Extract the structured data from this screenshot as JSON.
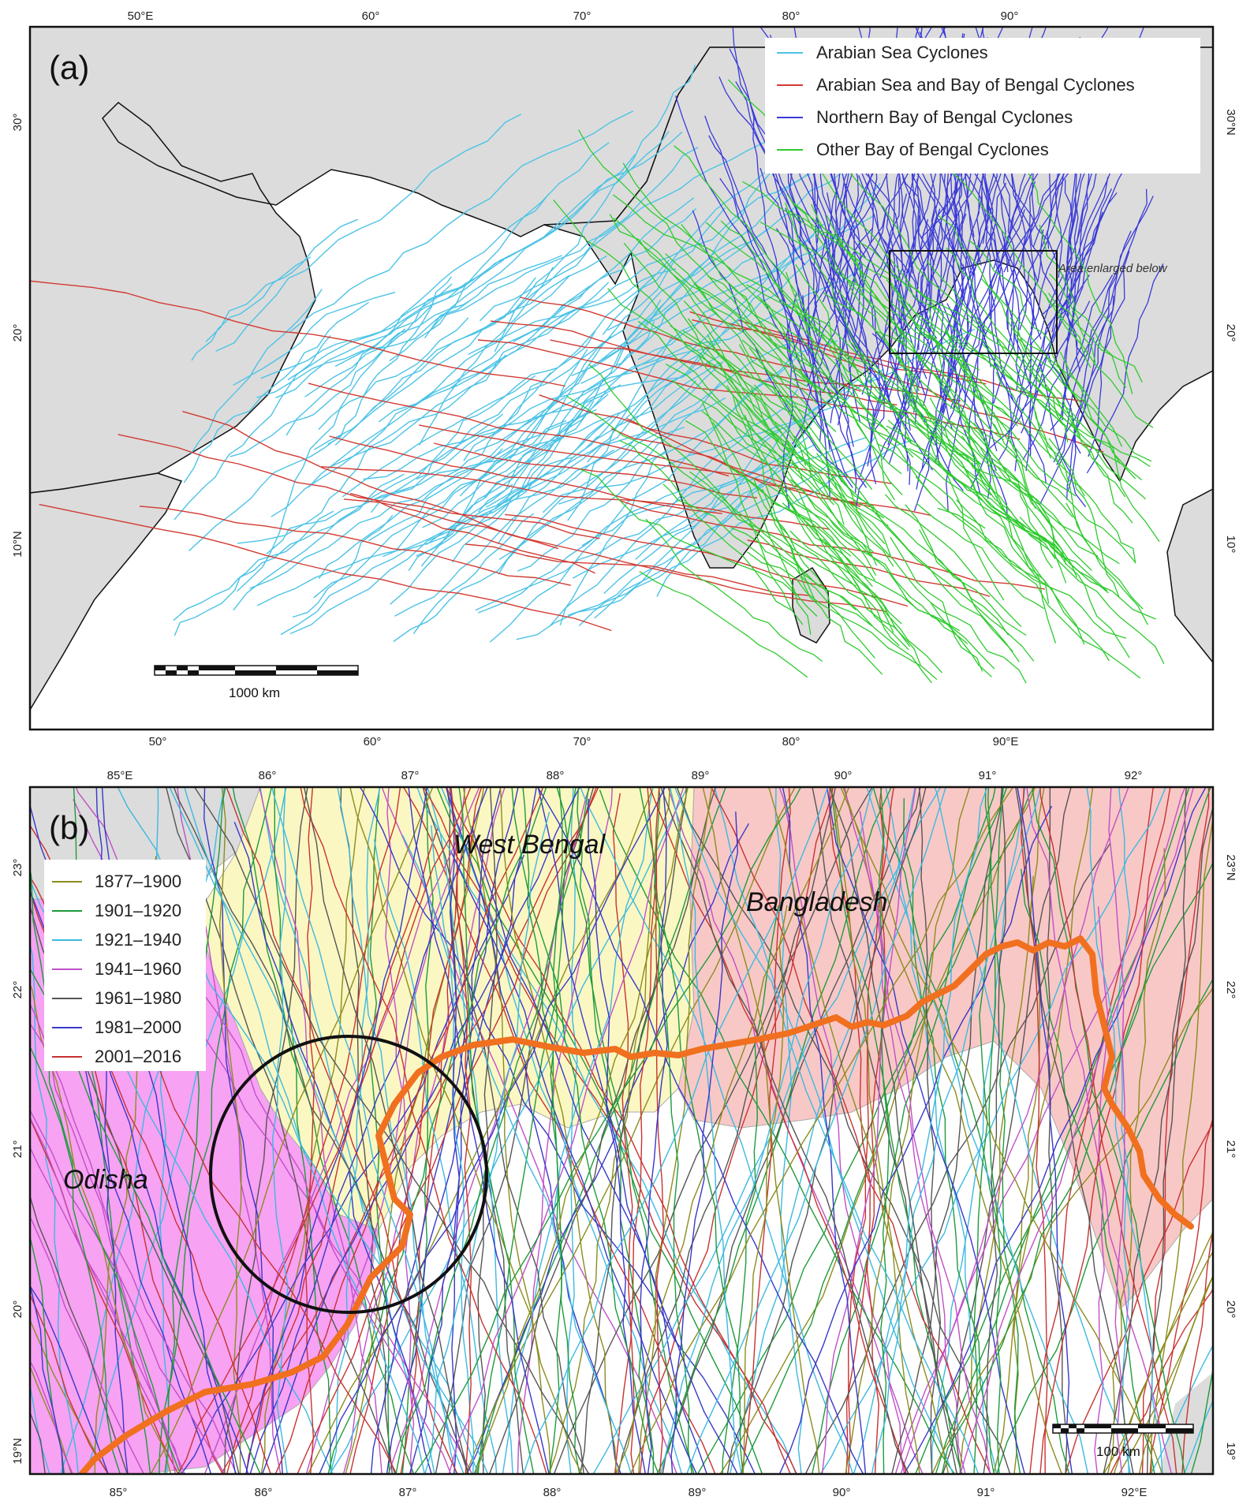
{
  "panel_a": {
    "label": "(a)",
    "top_ticks": [
      "50°E",
      "60°",
      "70°",
      "80°",
      "90°"
    ],
    "bottom_ticks": [
      "50°",
      "60°",
      "70°",
      "80°",
      "90°E"
    ],
    "left_ticks": [
      "30°",
      "20°",
      "10°N"
    ],
    "right_ticks": [
      "30°N",
      "20°",
      "10°"
    ],
    "legend": [
      {
        "label": "Arabian Sea Cyclones",
        "color": "#4cc3e6"
      },
      {
        "label": "Arabian Sea and Bay of Bengal Cyclones",
        "color": "#d23a32"
      },
      {
        "label": "Northern Bay of Bengal Cyclones",
        "color": "#3a3ad8"
      },
      {
        "label": "Other Bay of Bengal Cyclones",
        "color": "#2ecb2e"
      }
    ],
    "inset_label": "Area enlarged below",
    "scale_label": "1000 km"
  },
  "panel_b": {
    "label": "(b)",
    "top_ticks": [
      "85°E",
      "86°",
      "87°",
      "88°",
      "89°",
      "90°",
      "91°",
      "92°"
    ],
    "bottom_ticks": [
      "85°",
      "86°",
      "87°",
      "88°",
      "89°",
      "90°",
      "91°",
      "92°E"
    ],
    "left_ticks": [
      "23°",
      "22°",
      "21°",
      "20°",
      "19°N"
    ],
    "right_ticks": [
      "23°N",
      "22°",
      "21°",
      "20°",
      "19°"
    ],
    "regions": {
      "west_bengal": "West Bengal",
      "bangladesh": "Bangladesh",
      "odisha": "Odisha"
    },
    "legend": [
      {
        "label": "1877–1900",
        "color": "#8c8c1e"
      },
      {
        "label": "1901–1920",
        "color": "#1e9a3c"
      },
      {
        "label": "1921–1940",
        "color": "#3cb9e0"
      },
      {
        "label": "1941–1960",
        "color": "#c050c8"
      },
      {
        "label": "1961–1980",
        "color": "#555555"
      },
      {
        "label": "1981–2000",
        "color": "#3838c8"
      },
      {
        "label": "2001–2016",
        "color": "#c83232"
      }
    ],
    "scale_label": "100 km",
    "coastline_color": "#f07020"
  }
}
